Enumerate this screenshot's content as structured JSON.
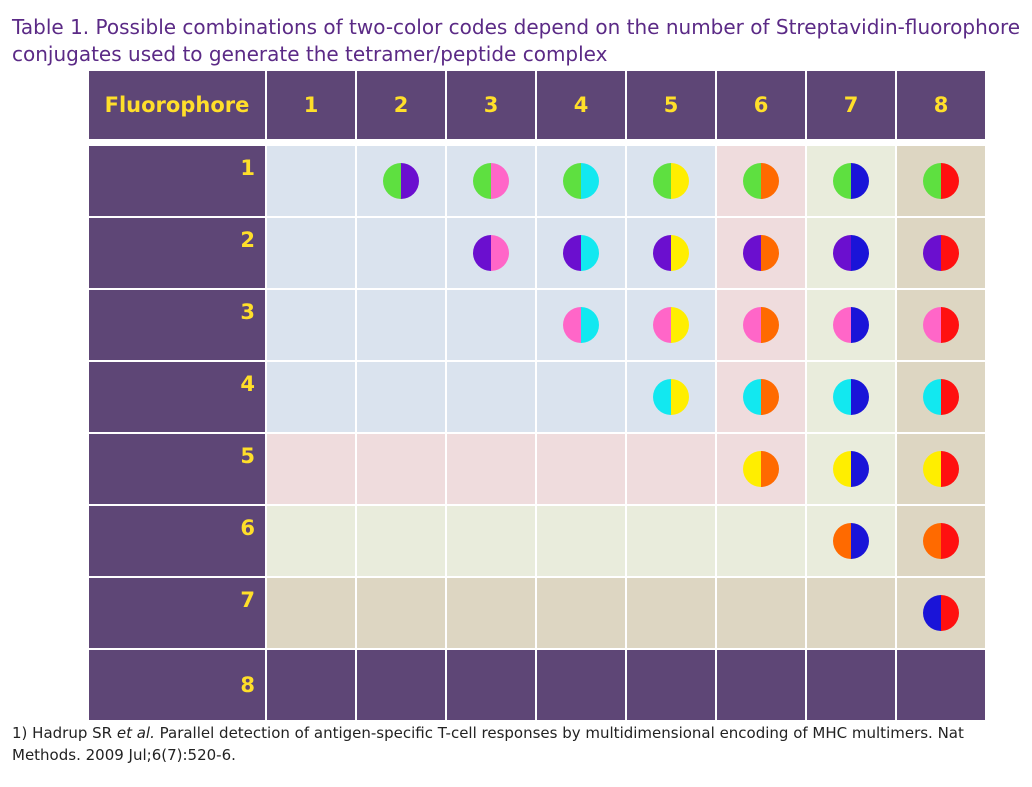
{
  "caption": "Table 1. Possible combinations of two-color codes depend on the number of Streptavidin-fluorophore conjugates used to generate the tetramer/peptide complex",
  "table": {
    "corner_label": "Fluorophore",
    "column_labels": [
      "1",
      "2",
      "3",
      "4",
      "5",
      "6",
      "7",
      "8"
    ],
    "row_labels": [
      "1",
      "2",
      "3",
      "4",
      "5",
      "6",
      "7",
      "8"
    ],
    "fluorophore_colors": [
      "#5ee040",
      "#6b0fcf",
      "#ff66c8",
      "#12e8f0",
      "#ffee00",
      "#ff6a00",
      "#1a14d8",
      "#ff1010"
    ],
    "row_band_colors": [
      "#dae3ee",
      "#dae3ee",
      "#dae3ee",
      "#dae3ee",
      "#efdcdd",
      "#e9ecdc",
      "#ddd6c2",
      "#5e4676"
    ],
    "column_shading": [
      "#dae3ee",
      "#dae3ee",
      "#dae3ee",
      "#dae3ee",
      "#dae3ee",
      "#efdcdd",
      "#e9ecdc",
      "#ddd6c2"
    ],
    "header_color": "#5e4676",
    "header_text_color": "#ffdf2a"
  },
  "footnote": {
    "prefix": "1) Hadrup SR ",
    "italic": "et al.",
    "rest": " Parallel detection of antigen-specific T-cell responses by multidimensional encoding of MHC multimers. Nat Methods. 2009 Jul;6(7):520-6."
  }
}
